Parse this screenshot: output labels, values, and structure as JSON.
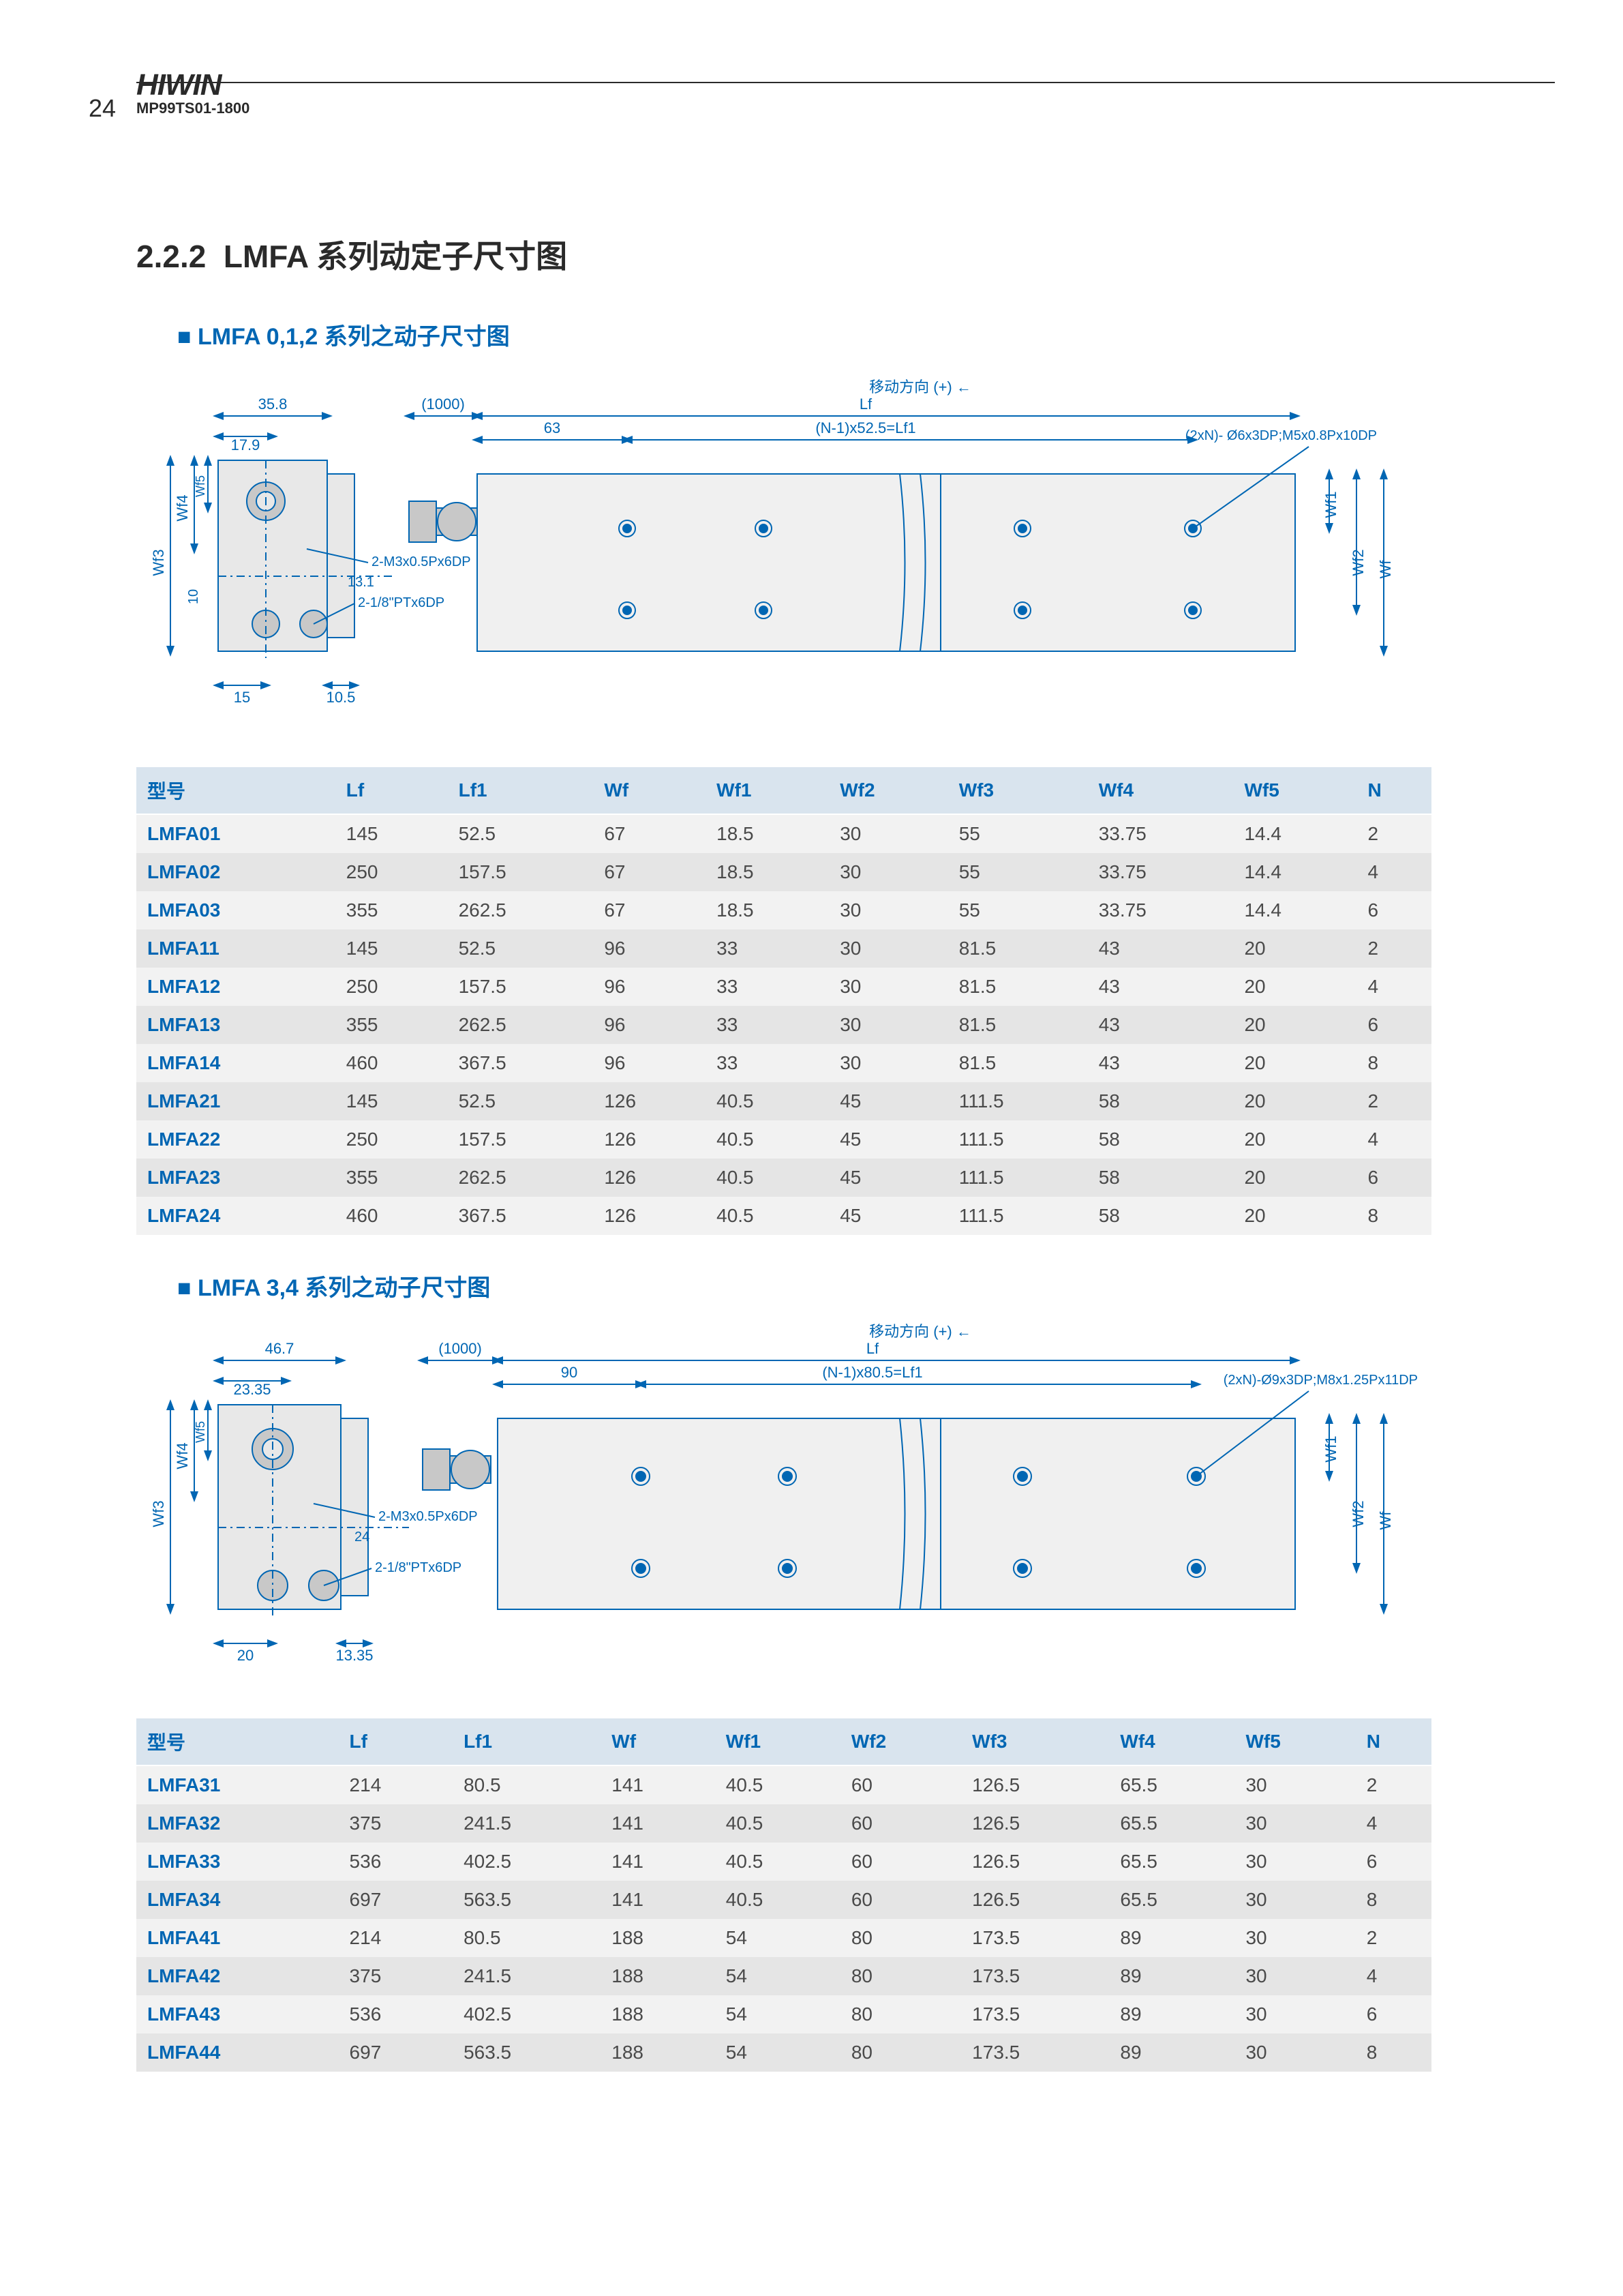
{
  "header": {
    "page_number": "24",
    "brand": "HIWIN",
    "doc_code": "MP99TS01-1800"
  },
  "section": {
    "number": "2.2.2",
    "title": "LMFA 系列动定子尺寸图"
  },
  "group1": {
    "subtitle": "LMFA 0,1,2 系列之动子尺寸图",
    "diagram": {
      "dims": {
        "d358": "35.8",
        "d179": "17.9",
        "d1000": "(1000)",
        "d63": "63",
        "lf": "Lf",
        "lf1_expr": "(N-1)x52.5=Lf1",
        "direction": "移动方向 (+) ←",
        "holes_note": "(2xN)- Ø6x3DP;M5x0.8Px10DP",
        "wf": "Wf",
        "wf1": "Wf1",
        "wf2": "Wf2",
        "wf3": "Wf3",
        "wf4": "Wf4",
        "wf5": "Wf5",
        "screw1": "2-M3x0.5Px6DP",
        "d131": "13.1",
        "screw2": "2-1/8\"PTx6DP",
        "d10": "10",
        "d15": "15",
        "d105": "10.5"
      },
      "colors": {
        "line": "#0066b3",
        "fill_light": "#e8e8e8",
        "fill_med": "#c8c8c8",
        "text": "#0066b3"
      }
    },
    "table": {
      "columns": [
        "型号",
        "Lf",
        "Lf1",
        "Wf",
        "Wf1",
        "Wf2",
        "Wf3",
        "Wf4",
        "Wf5",
        "N"
      ],
      "rows": [
        [
          "LMFA01",
          "145",
          "52.5",
          "67",
          "18.5",
          "30",
          "55",
          "33.75",
          "14.4",
          "2"
        ],
        [
          "LMFA02",
          "250",
          "157.5",
          "67",
          "18.5",
          "30",
          "55",
          "33.75",
          "14.4",
          "4"
        ],
        [
          "LMFA03",
          "355",
          "262.5",
          "67",
          "18.5",
          "30",
          "55",
          "33.75",
          "14.4",
          "6"
        ],
        [
          "LMFA11",
          "145",
          "52.5",
          "96",
          "33",
          "30",
          "81.5",
          "43",
          "20",
          "2"
        ],
        [
          "LMFA12",
          "250",
          "157.5",
          "96",
          "33",
          "30",
          "81.5",
          "43",
          "20",
          "4"
        ],
        [
          "LMFA13",
          "355",
          "262.5",
          "96",
          "33",
          "30",
          "81.5",
          "43",
          "20",
          "6"
        ],
        [
          "LMFA14",
          "460",
          "367.5",
          "96",
          "33",
          "30",
          "81.5",
          "43",
          "20",
          "8"
        ],
        [
          "LMFA21",
          "145",
          "52.5",
          "126",
          "40.5",
          "45",
          "111.5",
          "58",
          "20",
          "2"
        ],
        [
          "LMFA22",
          "250",
          "157.5",
          "126",
          "40.5",
          "45",
          "111.5",
          "58",
          "20",
          "4"
        ],
        [
          "LMFA23",
          "355",
          "262.5",
          "126",
          "40.5",
          "45",
          "111.5",
          "58",
          "20",
          "6"
        ],
        [
          "LMFA24",
          "460",
          "367.5",
          "126",
          "40.5",
          "45",
          "111.5",
          "58",
          "20",
          "8"
        ]
      ]
    }
  },
  "group2": {
    "subtitle": "LMFA 3,4 系列之动子尺寸图",
    "diagram": {
      "dims": {
        "d467": "46.7",
        "d2335": "23.35",
        "d1000": "(1000)",
        "d90": "90",
        "lf": "Lf",
        "lf1_expr": "(N-1)x80.5=Lf1",
        "direction": "移动方向 (+) ←",
        "holes_note": "(2xN)-Ø9x3DP;M8x1.25Px11DP",
        "wf": "Wf",
        "wf1": "Wf1",
        "wf2": "Wf2",
        "wf3": "Wf3",
        "wf4": "Wf4",
        "wf5": "Wf5",
        "screw1": "2-M3x0.5Px6DP",
        "d24": "24",
        "screw2": "2-1/8\"PTx6DP",
        "d20": "20",
        "d1335": "13.35"
      }
    },
    "table": {
      "columns": [
        "型号",
        "Lf",
        "Lf1",
        "Wf",
        "Wf1",
        "Wf2",
        "Wf3",
        "Wf4",
        "Wf5",
        "N"
      ],
      "rows": [
        [
          "LMFA31",
          "214",
          "80.5",
          "141",
          "40.5",
          "60",
          "126.5",
          "65.5",
          "30",
          "2"
        ],
        [
          "LMFA32",
          "375",
          "241.5",
          "141",
          "40.5",
          "60",
          "126.5",
          "65.5",
          "30",
          "4"
        ],
        [
          "LMFA33",
          "536",
          "402.5",
          "141",
          "40.5",
          "60",
          "126.5",
          "65.5",
          "30",
          "6"
        ],
        [
          "LMFA34",
          "697",
          "563.5",
          "141",
          "40.5",
          "60",
          "126.5",
          "65.5",
          "30",
          "8"
        ],
        [
          "LMFA41",
          "214",
          "80.5",
          "188",
          "54",
          "80",
          "173.5",
          "89",
          "30",
          "2"
        ],
        [
          "LMFA42",
          "375",
          "241.5",
          "188",
          "54",
          "80",
          "173.5",
          "89",
          "30",
          "4"
        ],
        [
          "LMFA43",
          "536",
          "402.5",
          "188",
          "54",
          "80",
          "173.5",
          "89",
          "30",
          "6"
        ],
        [
          "LMFA44",
          "697",
          "563.5",
          "188",
          "54",
          "80",
          "173.5",
          "89",
          "30",
          "8"
        ]
      ]
    }
  }
}
